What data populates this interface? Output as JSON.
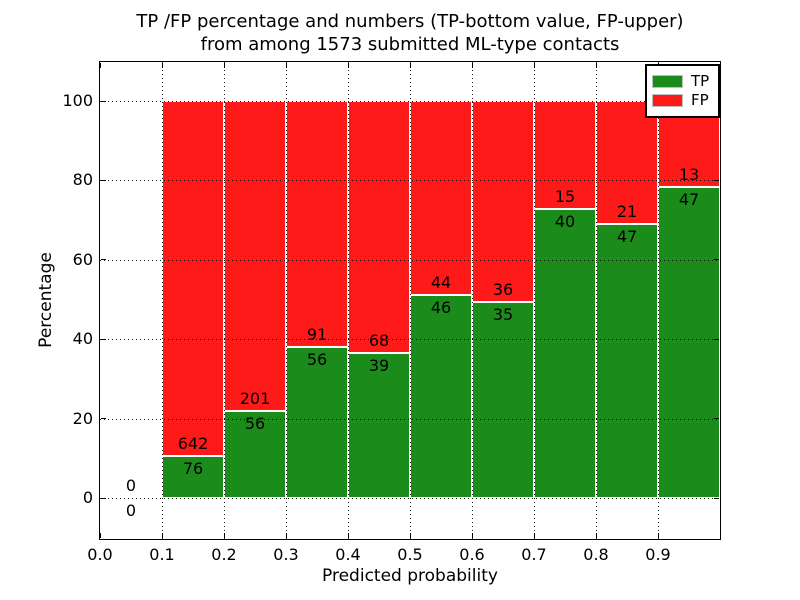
{
  "figure": {
    "title_line1": "TP /FP percentage and numbers (TP-bottom value, FP-upper)",
    "title_line2": "from among 1573 submitted ML-type contacts",
    "xlabel": "Predicted probability",
    "ylabel": "Percentage"
  },
  "legend": {
    "entries": [
      {
        "label": "TP",
        "color": "#1b8c1b"
      },
      {
        "label": "FP",
        "color": "#ff1a1a"
      }
    ]
  },
  "chart_data": {
    "type": "bar",
    "stacked": true,
    "title": "TP /FP percentage and numbers (TP-bottom value, FP-upper)\nfrom among 1573 submitted ML-type contacts",
    "xlabel": "Predicted probability",
    "ylabel": "Percentage",
    "xlim": [
      0.0,
      1.0
    ],
    "ylim": [
      -10.5,
      110
    ],
    "grid": "dotted",
    "legend_position": "upper-right",
    "total_contacts": 1573,
    "bin_width": 0.1,
    "x_tick_labels": [
      "0.0",
      "0.1",
      "0.2",
      "0.3",
      "0.4",
      "0.5",
      "0.6",
      "0.7",
      "0.8",
      "0.9"
    ],
    "y_ticks": [
      0,
      20,
      40,
      60,
      80,
      100
    ],
    "bins": [
      {
        "x0": 0.0,
        "x1": 0.1,
        "tp": 0,
        "fp": 0
      },
      {
        "x0": 0.1,
        "x1": 0.2,
        "tp": 76,
        "fp": 642
      },
      {
        "x0": 0.2,
        "x1": 0.3,
        "tp": 56,
        "fp": 201
      },
      {
        "x0": 0.3,
        "x1": 0.4,
        "tp": 56,
        "fp": 91
      },
      {
        "x0": 0.4,
        "x1": 0.5,
        "tp": 39,
        "fp": 68
      },
      {
        "x0": 0.5,
        "x1": 0.6,
        "tp": 46,
        "fp": 44
      },
      {
        "x0": 0.6,
        "x1": 0.7,
        "tp": 35,
        "fp": 36
      },
      {
        "x0": 0.7,
        "x1": 0.8,
        "tp": 40,
        "fp": 15
      },
      {
        "x0": 0.8,
        "x1": 0.9,
        "tp": 47,
        "fp": 21
      },
      {
        "x0": 0.9,
        "x1": 1.0,
        "tp": 47,
        "fp": 13
      }
    ],
    "series": [
      {
        "name": "TP",
        "color": "#1b8c1b"
      },
      {
        "name": "FP",
        "color": "#ff1a1a"
      }
    ]
  }
}
